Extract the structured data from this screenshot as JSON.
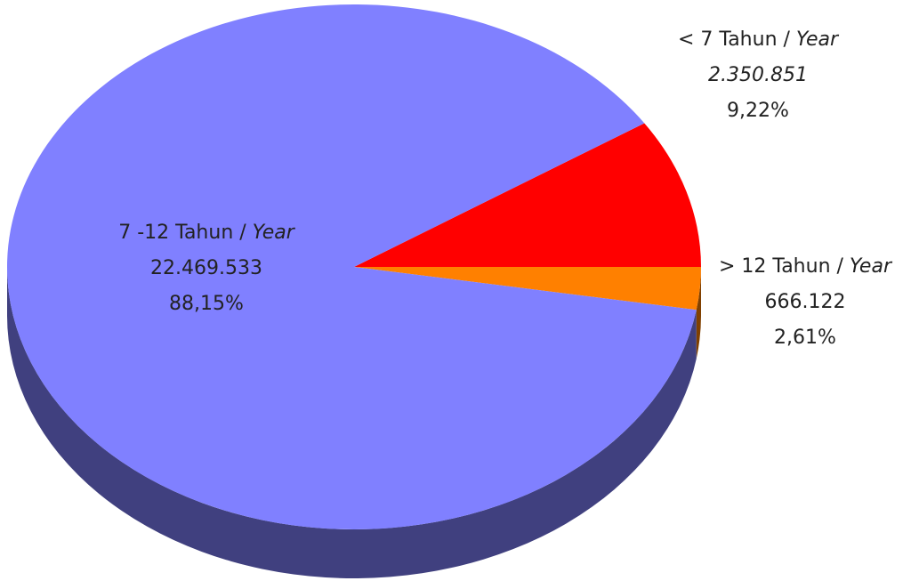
{
  "chart_data": {
    "type": "pie",
    "categories": [
      "< 7 Tahun / Year",
      "> 12 Tahun / Year",
      "7 -12 Tahun / Year"
    ],
    "values": [
      2350851,
      666122,
      22469533
    ],
    "value_labels": [
      "2.350.851",
      "666.122",
      "22.469.533"
    ],
    "value_label_italic": [
      true,
      false,
      false
    ],
    "percentages": [
      9.22,
      2.61,
      88.15
    ],
    "percentage_labels": [
      "9,22%",
      "2,61%",
      "88,15%"
    ],
    "colors": [
      "#ff0000",
      "#ff8000",
      "#8080ff"
    ],
    "side_colors": [
      "#800000",
      "#804000",
      "#40407f"
    ]
  }
}
